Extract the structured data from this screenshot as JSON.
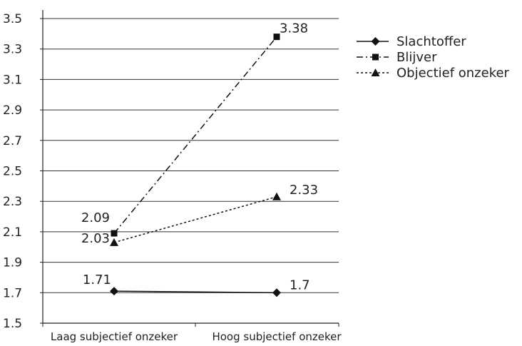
{
  "chart_data": {
    "type": "line",
    "categories": [
      "Laag subjectief onzeker",
      "Hoog subjectief onzeker"
    ],
    "series": [
      {
        "name": "Slachtoffer",
        "values": [
          1.71,
          1.7
        ],
        "labels": [
          "1.71",
          "1.7"
        ],
        "marker": "diamond",
        "dash": "solid"
      },
      {
        "name": "Blijver",
        "values": [
          2.09,
          3.38
        ],
        "labels": [
          "2.09",
          "3.38"
        ],
        "marker": "square",
        "dash": "dashdot"
      },
      {
        "name": "Objectief onzeker",
        "values": [
          2.03,
          2.33
        ],
        "labels": [
          "2.03",
          "2.33"
        ],
        "marker": "triangle",
        "dash": "dotted"
      }
    ],
    "yticks": [
      "1.5",
      "1.7",
      "1.9",
      "2.1",
      "2.3",
      "2.5",
      "2.7",
      "2.9",
      "3.1",
      "3.3",
      "3.5"
    ],
    "ylim": [
      1.5,
      3.5
    ],
    "grid": true,
    "legend_position": "right"
  }
}
